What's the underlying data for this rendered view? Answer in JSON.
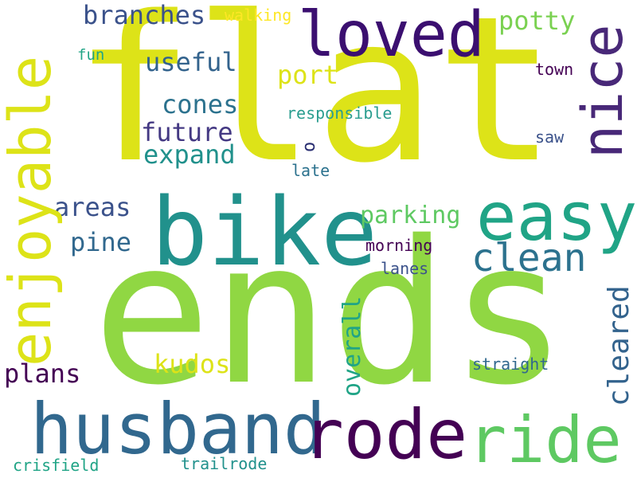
{
  "words": {
    "flat": {
      "text": "flat",
      "color": "#dde318"
    },
    "ends": {
      "text": "ends",
      "color": "#90d743"
    },
    "bike": {
      "text": "bike",
      "color": "#21918c"
    },
    "husband": {
      "text": "husband",
      "color": "#31688e"
    },
    "rode": {
      "text": "rode",
      "color": "#440154"
    },
    "ride": {
      "text": "ride",
      "color": "#5ec962"
    },
    "easy": {
      "text": "easy",
      "color": "#20a486"
    },
    "loved": {
      "text": "loved",
      "color": "#3b0f70"
    },
    "enjoyable": {
      "text": "enjoyable",
      "color": "#dde318"
    },
    "nice": {
      "text": "nice",
      "color": "#482878"
    },
    "clean": {
      "text": "clean",
      "color": "#2c728e"
    },
    "branches": {
      "text": "branches",
      "color": "#3b528b"
    },
    "potty": {
      "text": "potty",
      "color": "#7ad151"
    },
    "useful": {
      "text": "useful",
      "color": "#33638d"
    },
    "port": {
      "text": "port",
      "color": "#dde318"
    },
    "cones": {
      "text": "cones",
      "color": "#2c728e"
    },
    "future": {
      "text": "future",
      "color": "#443983"
    },
    "expand": {
      "text": "expand",
      "color": "#21918c"
    },
    "o": {
      "text": "o",
      "color": "#2a2f72"
    },
    "areas": {
      "text": "areas",
      "color": "#3b528b"
    },
    "parking": {
      "text": "parking",
      "color": "#5ec962"
    },
    "pine": {
      "text": "pine",
      "color": "#31688e"
    },
    "kudos": {
      "text": "kudos",
      "color": "#dde318"
    },
    "plans": {
      "text": "plans",
      "color": "#440154"
    },
    "overall": {
      "text": "overall",
      "color": "#20a486"
    },
    "cleared": {
      "text": "cleared",
      "color": "#33638d"
    },
    "walking": {
      "text": "walking",
      "color": "#fde725"
    },
    "fun": {
      "text": "fun",
      "color": "#20a486"
    },
    "town": {
      "text": "town",
      "color": "#440154"
    },
    "responsible": {
      "text": "responsible",
      "color": "#2a9d8f"
    },
    "saw": {
      "text": "saw",
      "color": "#3b528b"
    },
    "late": {
      "text": "late",
      "color": "#2c728e"
    },
    "morning": {
      "text": "morning",
      "color": "#440154"
    },
    "lanes": {
      "text": "lanes",
      "color": "#3b528b"
    },
    "straight": {
      "text": "straight",
      "color": "#31688e"
    },
    "crisfield": {
      "text": "crisfield",
      "color": "#20a486"
    },
    "trailrode": {
      "text": "trailrode",
      "color": "#21918c"
    }
  }
}
